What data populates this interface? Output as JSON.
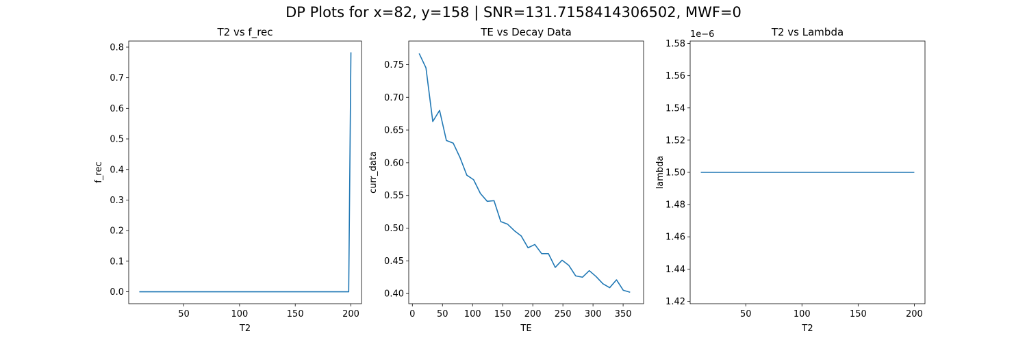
{
  "suptitle": "DP Plots for x=82, y=158 | SNR=131.7158414306502, MWF=0",
  "line_color": "#1f77b4",
  "chart_data": [
    {
      "type": "line",
      "title": "T2 vs f_rec",
      "xlabel": "T2",
      "ylabel": "f_rec",
      "xlim": [
        0.5,
        209.5
      ],
      "ylim": [
        -0.039,
        0.82
      ],
      "xticks": [
        50,
        100,
        150,
        200
      ],
      "yticks": [
        0.0,
        0.1,
        0.2,
        0.3,
        0.4,
        0.5,
        0.6,
        0.7,
        0.8
      ],
      "ytick_labels": [
        "0.0",
        "0.1",
        "0.2",
        "0.3",
        "0.4",
        "0.5",
        "0.6",
        "0.7",
        "0.8"
      ],
      "offset_text": "",
      "series": [
        {
          "x": [
            10,
            198,
            200
          ],
          "y": [
            0.0,
            0.0,
            0.783
          ]
        }
      ]
    },
    {
      "type": "line",
      "title": "TE vs Decay Data",
      "xlabel": "TE",
      "ylabel": "curr_data",
      "xlim": [
        -6,
        384
      ],
      "ylim": [
        0.3845,
        0.786
      ],
      "xticks": [
        0,
        50,
        100,
        150,
        200,
        250,
        300,
        350
      ],
      "yticks": [
        0.4,
        0.45,
        0.5,
        0.55,
        0.6,
        0.65,
        0.7,
        0.75
      ],
      "ytick_labels": [
        "0.40",
        "0.45",
        "0.50",
        "0.55",
        "0.60",
        "0.65",
        "0.70",
        "0.75"
      ],
      "offset_text": "",
      "series": [
        {
          "x": [
            11.3,
            22.6,
            33.9,
            45.2,
            56.5,
            67.8,
            79.1,
            90.4,
            101.7,
            113,
            124.3,
            135.6,
            146.9,
            158.2,
            169.5,
            180.8,
            192.1,
            203.4,
            214.7,
            226,
            237.3,
            248.6,
            259.9,
            271.2,
            282.5,
            293.8,
            305.1,
            316.4,
            327.7,
            339,
            350.3,
            361.6
          ],
          "y": [
            0.767,
            0.745,
            0.663,
            0.68,
            0.634,
            0.63,
            0.608,
            0.581,
            0.574,
            0.553,
            0.541,
            0.542,
            0.51,
            0.506,
            0.496,
            0.488,
            0.47,
            0.475,
            0.461,
            0.461,
            0.44,
            0.451,
            0.443,
            0.427,
            0.425,
            0.435,
            0.426,
            0.415,
            0.409,
            0.421,
            0.405,
            0.402
          ]
        }
      ]
    },
    {
      "type": "line",
      "title": "T2 vs Lambda",
      "xlabel": "T2",
      "ylabel": "lambda",
      "xlim": [
        0.5,
        209.5
      ],
      "ylim": [
        1.4185e-06,
        1.5815e-06
      ],
      "xticks": [
        50,
        100,
        150,
        200
      ],
      "yticks": [
        1.42e-06,
        1.44e-06,
        1.46e-06,
        1.48e-06,
        1.5e-06,
        1.52e-06,
        1.54e-06,
        1.56e-06,
        1.58e-06
      ],
      "ytick_labels": [
        "1.42",
        "1.44",
        "1.46",
        "1.48",
        "1.50",
        "1.52",
        "1.54",
        "1.56",
        "1.58"
      ],
      "offset_text": "1e−6",
      "series": [
        {
          "x": [
            10,
            200
          ],
          "y": [
            1.5e-06,
            1.5e-06
          ]
        }
      ]
    }
  ]
}
